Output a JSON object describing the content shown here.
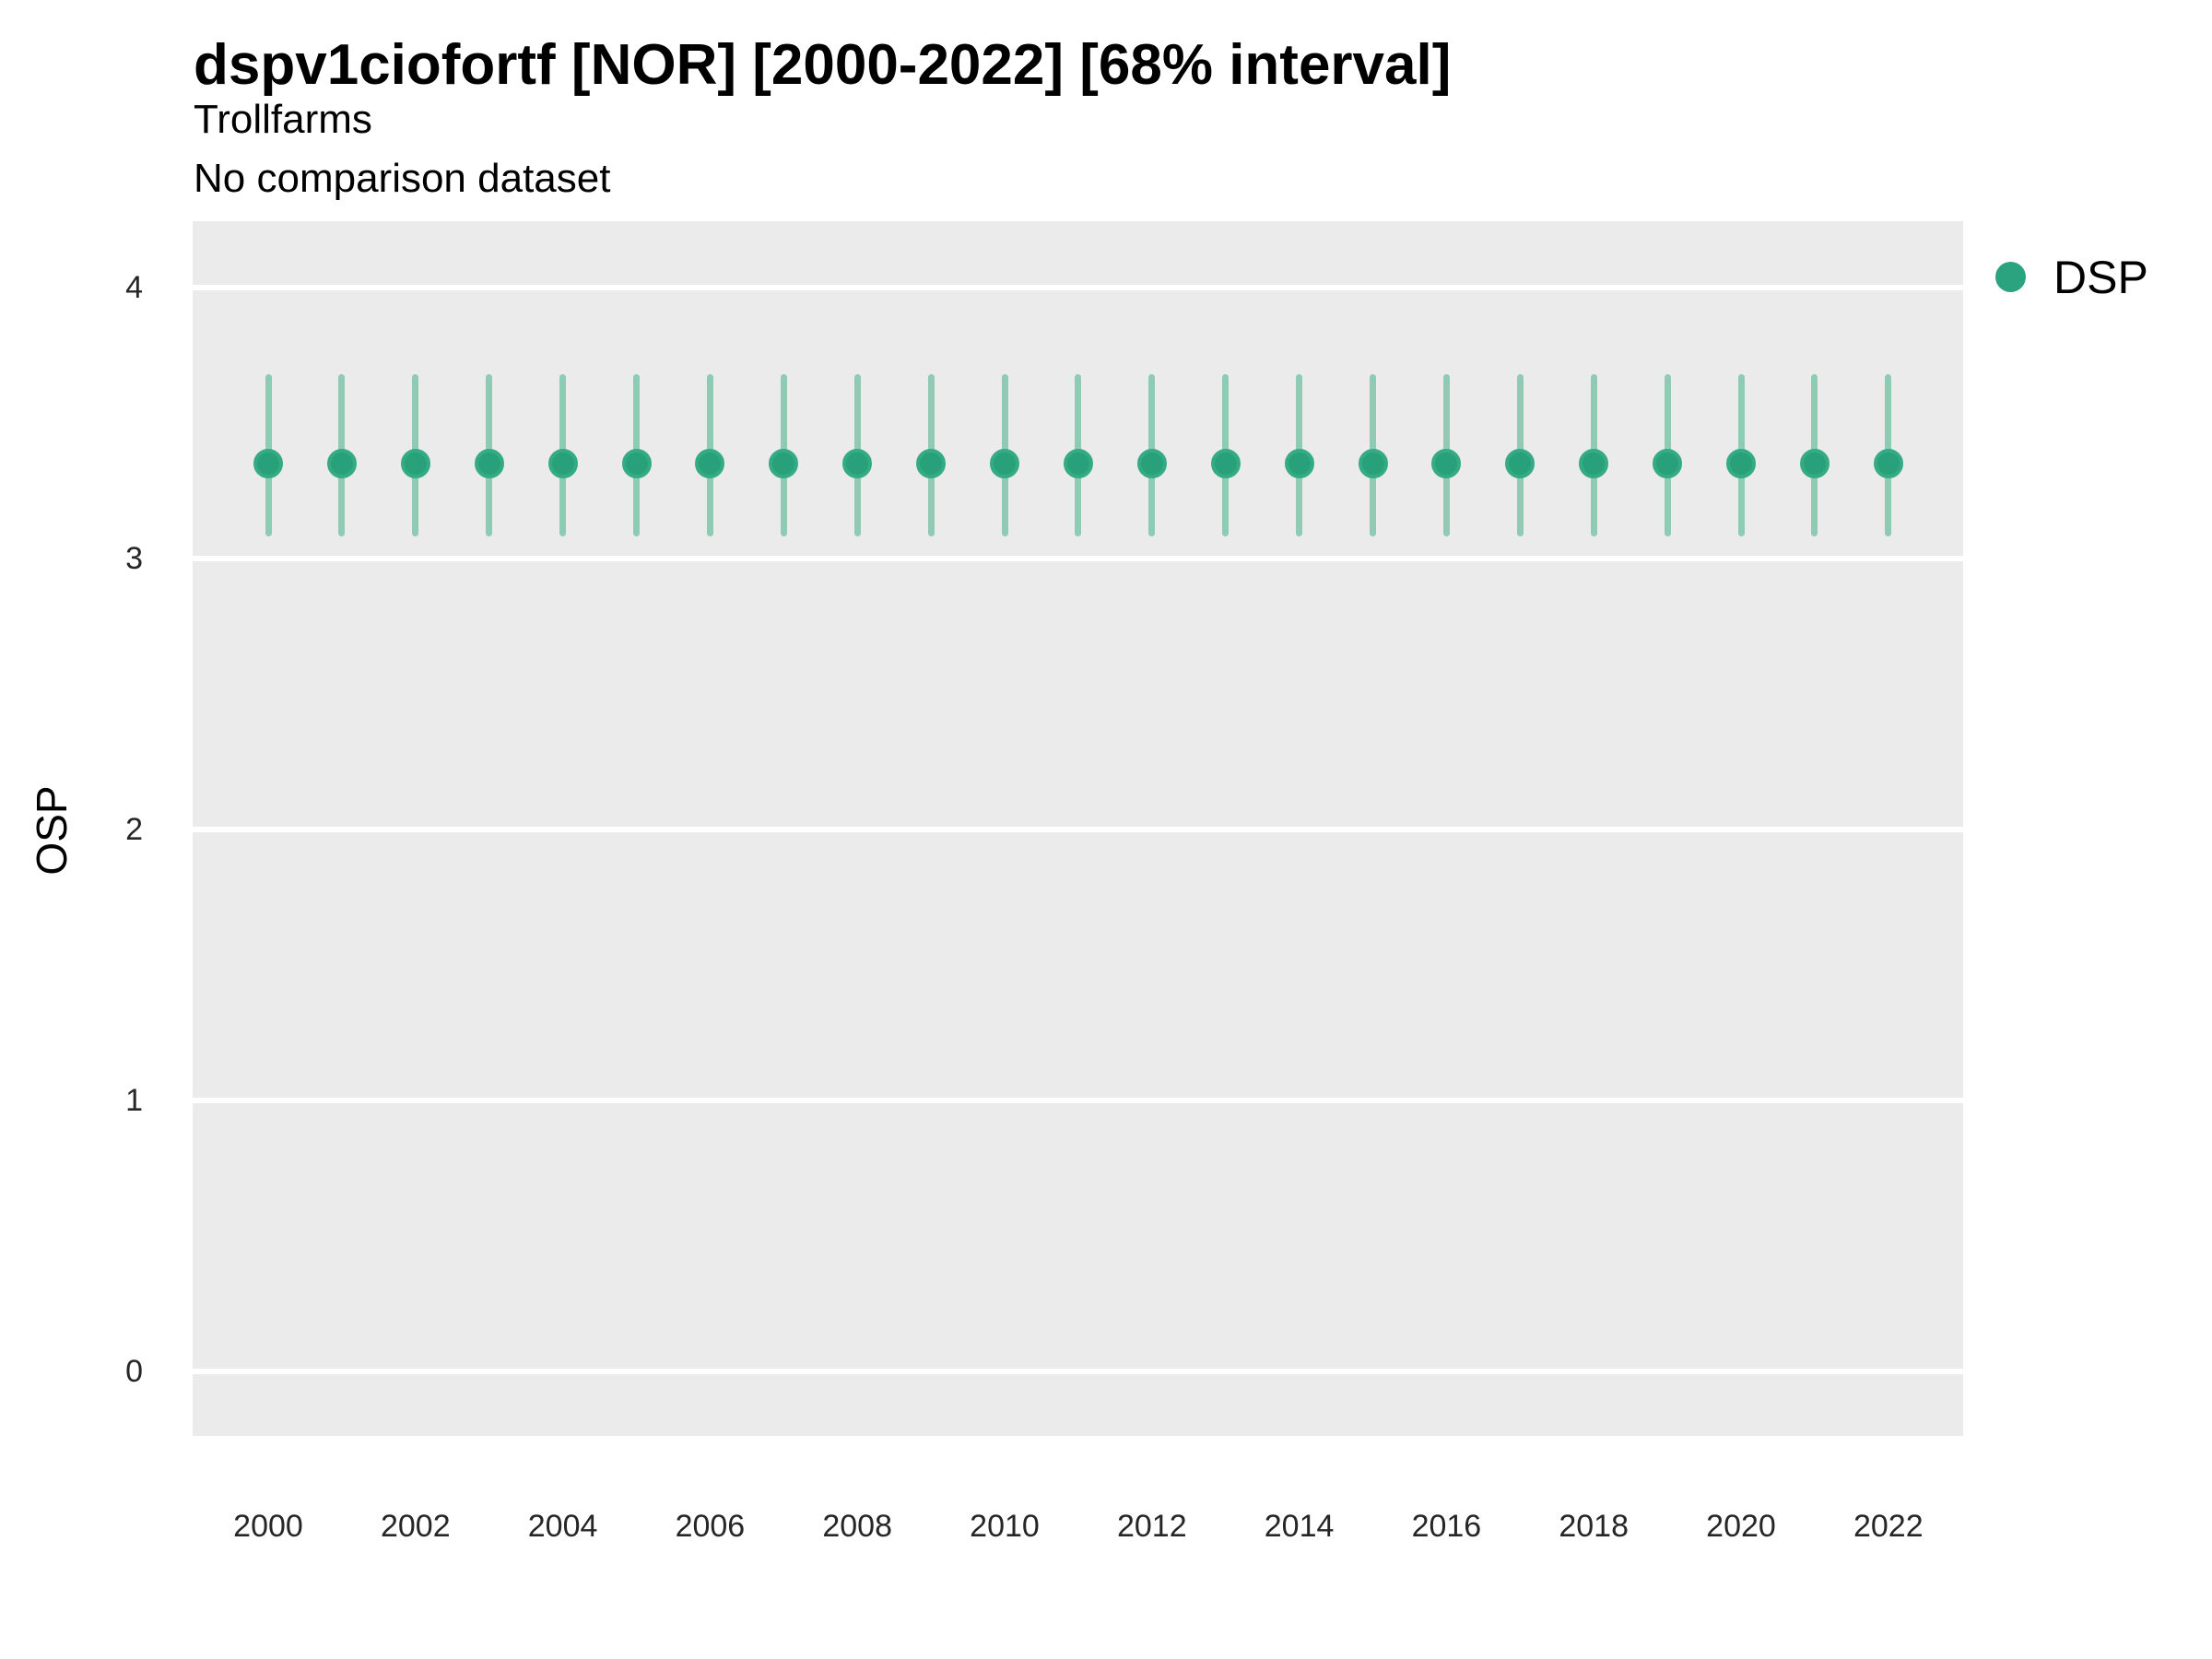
{
  "header": {
    "title": "dspv1ciofortf [NOR] [2000-2022] [68% interval]",
    "subtitle": "Trollfarms",
    "comparison_note": "No comparison dataset"
  },
  "y_axis": {
    "label": "OSP"
  },
  "legend": {
    "label": "DSP"
  },
  "colors": {
    "panel_background": "#ebebeb",
    "gridline": "#ffffff",
    "interval_bar": "#8fcbb4",
    "point_fill": "#28a17b",
    "point_ring": "#35ab83",
    "legend_swatch": "#2aa37e",
    "tick_text": "#262626",
    "title_text": "#000000"
  },
  "chart_data": {
    "type": "pointrange",
    "title": "dspv1ciofortf [NOR] [2000-2022] [68% interval]",
    "subtitle": "Trollfarms",
    "note": "No comparison dataset",
    "xlabel": "",
    "ylabel": "OSP",
    "series_name": "DSP",
    "interval_level": "68%",
    "legend_position": "right",
    "grid": "horizontal-major-only",
    "x": [
      2000,
      2001,
      2002,
      2003,
      2004,
      2005,
      2006,
      2007,
      2008,
      2009,
      2010,
      2011,
      2012,
      2013,
      2014,
      2015,
      2016,
      2017,
      2018,
      2019,
      2020,
      2021,
      2022
    ],
    "estimate": [
      3.35,
      3.35,
      3.35,
      3.35,
      3.35,
      3.35,
      3.35,
      3.35,
      3.35,
      3.35,
      3.35,
      3.35,
      3.35,
      3.35,
      3.35,
      3.35,
      3.35,
      3.35,
      3.35,
      3.35,
      3.35,
      3.35,
      3.35
    ],
    "lower": [
      3.08,
      3.08,
      3.08,
      3.08,
      3.08,
      3.08,
      3.08,
      3.08,
      3.08,
      3.08,
      3.08,
      3.08,
      3.08,
      3.08,
      3.08,
      3.08,
      3.08,
      3.08,
      3.08,
      3.08,
      3.08,
      3.08,
      3.08
    ],
    "upper": [
      3.68,
      3.68,
      3.68,
      3.68,
      3.68,
      3.68,
      3.68,
      3.68,
      3.68,
      3.68,
      3.68,
      3.68,
      3.68,
      3.68,
      3.68,
      3.68,
      3.68,
      3.68,
      3.68,
      3.68,
      3.68,
      3.68,
      3.68
    ],
    "yticks": [
      0,
      1,
      2,
      3,
      4
    ],
    "xticks": [
      2000,
      2002,
      2004,
      2006,
      2008,
      2010,
      2012,
      2014,
      2016,
      2018,
      2020,
      2022
    ],
    "ylim": [
      -0.24,
      4.25
    ]
  }
}
